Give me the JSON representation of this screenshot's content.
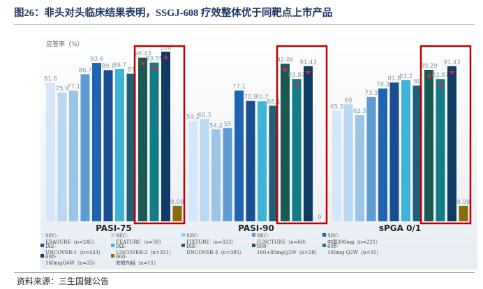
{
  "figure_title": "图26：非头对头临床结果表明，SSGJ-608 疗效整体优于同靶点上市产品",
  "source": "资料来源：三生国健公告",
  "colors": {
    "title": "#1f3864",
    "highlight_box": "#c00000",
    "star": "#e8233a",
    "bg_top": "#ffffff",
    "bg_bottom": "#e6edf3"
  },
  "chart_data": {
    "type": "bar",
    "ylabel": "应答率（%）",
    "ylim": [
      0,
      100
    ],
    "grid": false,
    "legend_placement": "bottom",
    "categories": [
      "PASI-75",
      "PASI-90",
      "sPGA 0/1"
    ],
    "series": [
      {
        "name": "SEC-ERASURE（n=245）",
        "color": "#d4e6f7",
        "values": [
          81.6,
          59.2,
          65.3
        ],
        "labels": [
          "81.6",
          "59.2",
          "65.3"
        ]
      },
      {
        "name": "SEC-FEATURE（n=59）",
        "color": "#b9d7f0",
        "values": [
          75.9,
          60.3,
          69
        ],
        "labels": [
          "75.9",
          "60.3",
          "69"
        ]
      },
      {
        "name": "SEC-FIXTURE（n=323）",
        "color": "#9bc4e7",
        "values": [
          77.1,
          54.2,
          62.5
        ],
        "labels": [
          "77.1",
          "54.2",
          "62.5"
        ]
      },
      {
        "name": "SEC-JUNCTURE（n=60）",
        "color": "#5d9bd2",
        "values": [
          86.7,
          55,
          73.3
        ],
        "labels": [
          "86.7",
          "55",
          "73.3"
        ]
      },
      {
        "name": "SEC-中国300mg（n=221）",
        "color": "#1f64b0",
        "values": [
          93.4,
          77.1,
          78.3
        ],
        "labels": [
          "93.4",
          "77.1",
          "78.3"
        ]
      },
      {
        "name": "IXE-UNCOVER-1（n=433）",
        "color": "#1a4d92",
        "values": [
          89.1,
          70.9,
          81.8
        ],
        "labels": [
          "89.1",
          "70.9",
          "81.8"
        ]
      },
      {
        "name": "IXE-UNCOVER-2（n=351）",
        "color": "#3fb3d5",
        "values": [
          89.7,
          70.7,
          83.2
        ],
        "labels": [
          "89.7",
          "70.7",
          "83.2"
        ]
      },
      {
        "name": "IXE-UNCOVER-3（n=385）",
        "color": "#1f5f7a",
        "values": [
          87,
          68.1,
          80
        ],
        "labels": [
          "87",
          "68.1",
          "80"
        ]
      },
      {
        "name": "608-160+80mgQ2W（n=28）",
        "color": "#1a5a52",
        "values": [
          96.43,
          92.86,
          89.29
        ],
        "labels": [
          "96.43",
          "92.86",
          "89.29"
        ],
        "star": true
      },
      {
        "name": "608-160mg Q2W（n=31）",
        "color": "#137c86",
        "values": [
          93.55,
          83.87,
          83.87
        ],
        "labels": [
          "93.55",
          "83.87",
          "83.87"
        ],
        "star": true
      },
      {
        "name": "608-160mgQ4W（n=35）",
        "color": "#0e3c62",
        "values": [
          100,
          91.43,
          91.43
        ],
        "labels": [
          "100",
          "91.43",
          "91.43"
        ],
        "star": true
      },
      {
        "name": "608-安慰剂组（n=11）",
        "color": "#8a6a0f",
        "values": [
          9.09,
          0,
          9.09
        ],
        "labels": [
          "9.09",
          "0",
          "9.09"
        ]
      }
    ],
    "highlighted_series": [
      "608-160+80mgQ2W（n=28）",
      "608-160mg Q2W（n=31）",
      "608-160mgQ4W（n=35）",
      "608-安慰剂组（n=11）"
    ],
    "legend_display": [
      {
        "line1": "SEC-",
        "line2": "ERASURE（n=245）"
      },
      {
        "line1": "SEC-",
        "line2": "FEATURE（n=59）"
      },
      {
        "line1": "SEC-",
        "line2": "FIXTURE（n=323）"
      },
      {
        "line1": "SEC-",
        "line2": "JUNCTURE（n=60）"
      },
      {
        "line1": "SEC-",
        "line2": "中国300mg（n=221）"
      },
      {
        "line1": "IXE-",
        "line2": "UNCOVER-1（n=433）"
      },
      {
        "line1": "IXE-",
        "line2": "UNCOVER-2（n=351）"
      },
      {
        "line1": "IXE-",
        "line2": "UNCOVER-3（n=385）"
      },
      {
        "line1": "608-",
        "line2": "160+80mgQ2W（n=28）"
      },
      {
        "line1": "608-",
        "line2": "160mg Q2W（n=31）"
      },
      {
        "line1": "608-",
        "line2": "160mgQ4W（n=35）"
      },
      {
        "line1": "608-",
        "line2": "安慰剂组（n=11）"
      }
    ]
  }
}
